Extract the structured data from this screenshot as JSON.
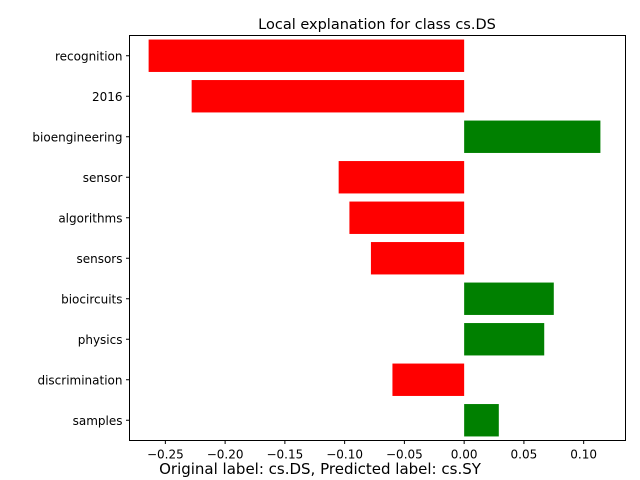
{
  "chart_data": {
    "type": "bar",
    "orientation": "horizontal",
    "title": "Local explanation for class cs.DS",
    "footer": "Original label: cs.DS, Predicted label: cs.SY",
    "categories": [
      "recognition",
      "2016",
      "bioengineering",
      "sensor",
      "algorithms",
      "sensors",
      "biocircuits",
      "physics",
      "discrimination",
      "samples"
    ],
    "values": [
      -0.264,
      -0.228,
      0.114,
      -0.105,
      -0.096,
      -0.078,
      0.075,
      0.067,
      -0.06,
      0.029
    ],
    "xlim": [
      -0.28,
      0.135
    ],
    "xticks": [
      -0.25,
      -0.2,
      -0.15,
      -0.1,
      -0.05,
      0.0,
      0.05,
      0.1
    ],
    "xtick_labels": [
      "−0.25",
      "−0.20",
      "−0.15",
      "−0.10",
      "−0.05",
      "0.00",
      "0.05",
      "0.10"
    ],
    "colors": {
      "positive": "#008000",
      "negative": "#ff0000"
    },
    "grid": false,
    "legend": false
  }
}
